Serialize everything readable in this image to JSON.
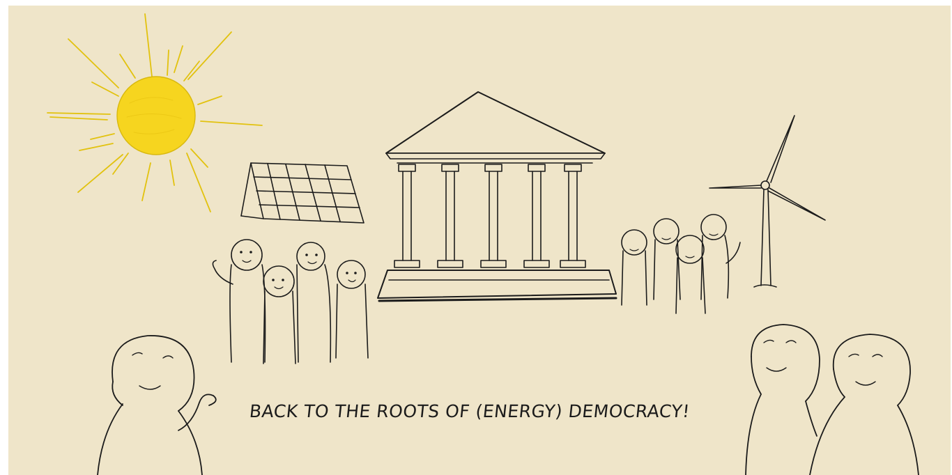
{
  "caption": "BACK TO THE ROOTS OF (ENERGY) DEMOCRACY!",
  "colors": {
    "paper": "#efe5c9",
    "ink": "#1b1b1b",
    "sun": "#f4d21c",
    "sun_rays": "#e7c512"
  },
  "icons": [
    "sun",
    "solar-panel",
    "greek-temple",
    "wind-turbine",
    "people-group-left",
    "people-group-right",
    "person-fist",
    "person-wave",
    "person-smile"
  ]
}
